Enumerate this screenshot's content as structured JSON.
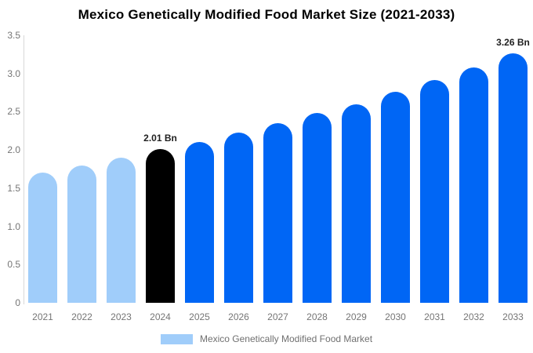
{
  "title": "Mexico Genetically Modified Food Market Size (2021-2033)",
  "colors": {
    "historical": "#A0CDFA",
    "highlight": "#000000",
    "forecast": "#0066F5",
    "axis_text": "#757575",
    "axis_line": "#D8D8D8",
    "value_label": "#1F1F1F",
    "background": "#FFFFFF"
  },
  "legend": {
    "label": "Mexico Genetically Modified Food Market",
    "swatch_color": "#A0CDFA",
    "position": "bottom"
  },
  "chart_data": {
    "type": "bar",
    "title": "Mexico Genetically Modified Food Market Size (2021-2033)",
    "xlabel": "",
    "ylabel": "",
    "unit": "Bn",
    "grid": false,
    "ylim": [
      0,
      3.5
    ],
    "yticks": [
      {
        "label": "0",
        "value": 0
      },
      {
        "label": "0.5",
        "value": 0.5
      },
      {
        "label": "1.0",
        "value": 1.0
      },
      {
        "label": "1.5",
        "value": 1.5
      },
      {
        "label": "2.0",
        "value": 2.0
      },
      {
        "label": "2.5",
        "value": 2.5
      },
      {
        "label": "3.0",
        "value": 3.0
      },
      {
        "label": "3.5",
        "value": 3.5
      }
    ],
    "categories": [
      "2021",
      "2022",
      "2023",
      "2024",
      "2025",
      "2026",
      "2027",
      "2028",
      "2029",
      "2030",
      "2031",
      "2032",
      "2033"
    ],
    "values": [
      1.7,
      1.8,
      1.9,
      2.01,
      2.1,
      2.23,
      2.35,
      2.48,
      2.6,
      2.76,
      2.92,
      3.08,
      3.26
    ],
    "segments": [
      "historical",
      "historical",
      "historical",
      "highlight",
      "forecast",
      "forecast",
      "forecast",
      "forecast",
      "forecast",
      "forecast",
      "forecast",
      "forecast",
      "forecast"
    ],
    "value_labels": [
      "",
      "",
      "",
      "2.01 Bn",
      "",
      "",
      "",
      "",
      "",
      "",
      "",
      "",
      "3.26 Bn"
    ],
    "legend_entries": [
      "Mexico Genetically Modified Food Market"
    ],
    "legend_position": "bottom"
  }
}
